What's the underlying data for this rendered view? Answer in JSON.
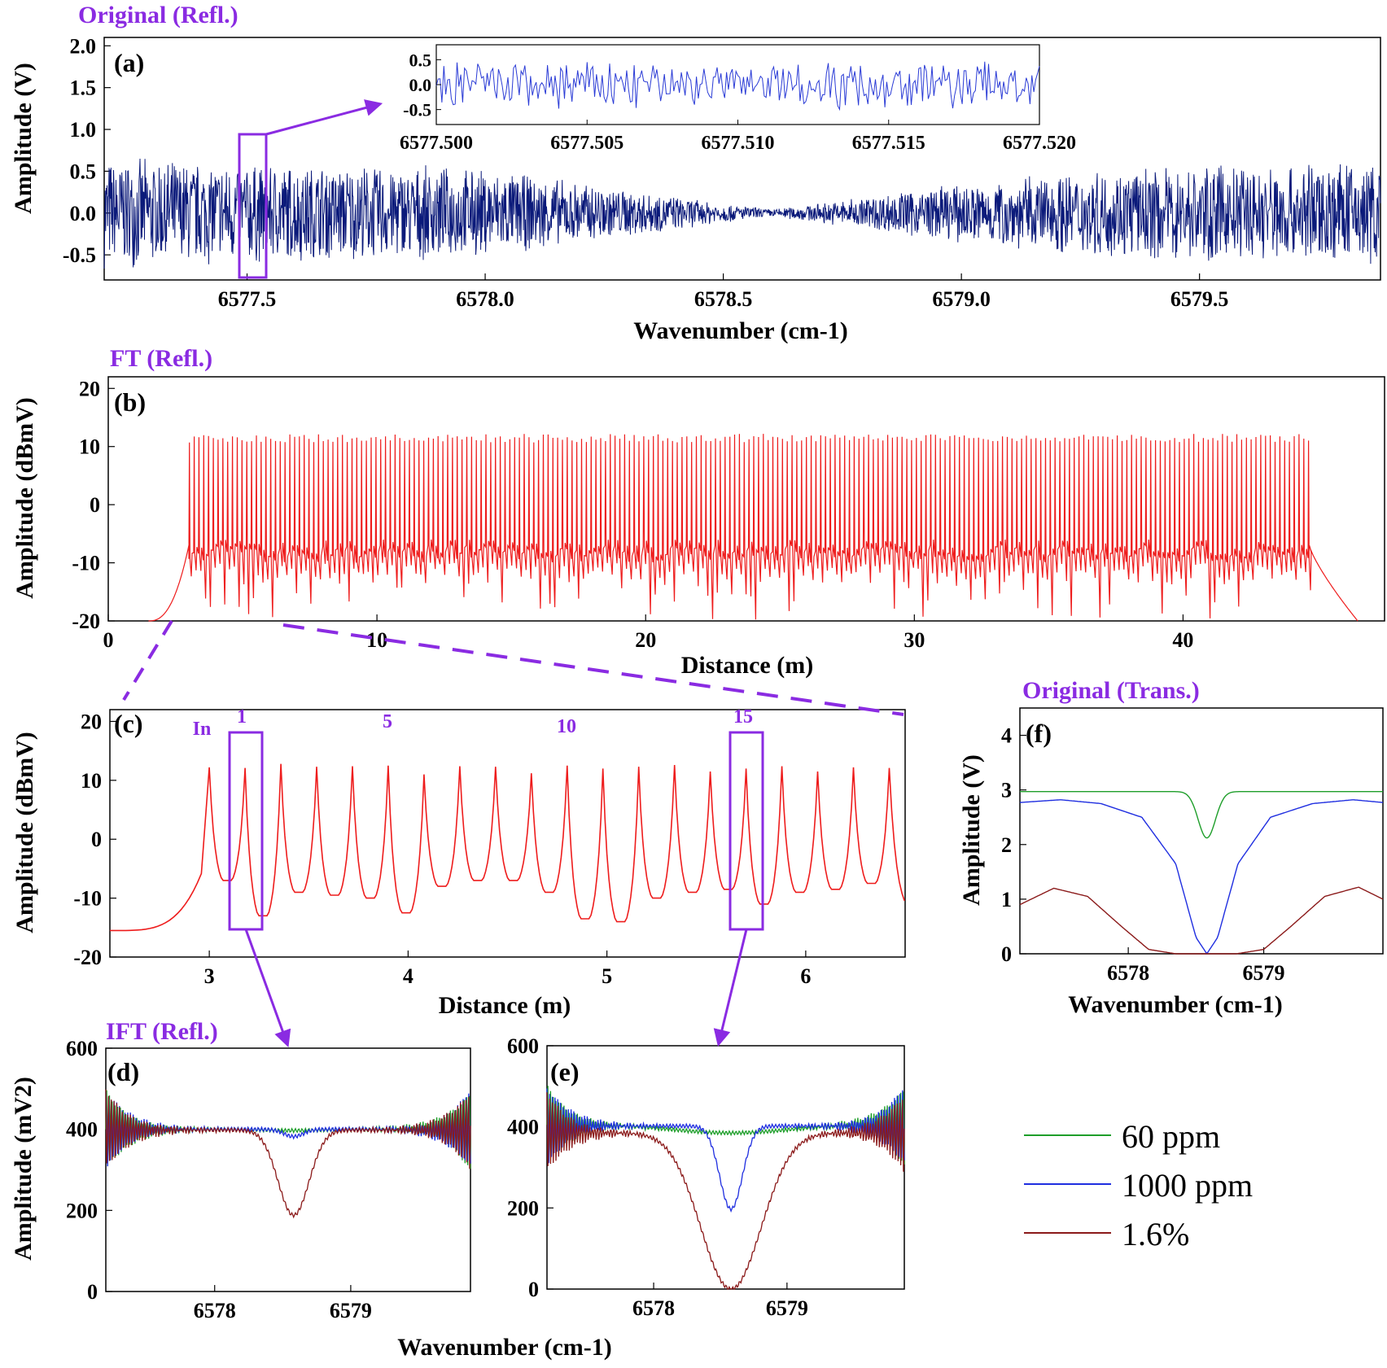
{
  "figure": {
    "colors": {
      "accent": "#8a2be2",
      "panel_a": "#0b1a7a",
      "spectrum": "#ee1c1c",
      "green": "#1e9e2a",
      "blue": "#1f2ee0",
      "darkred": "#8b1a1a"
    },
    "headers": {
      "a": "Original (Refl.)",
      "b": "FT (Refl.)",
      "f": "Original (Trans.)",
      "de": "IFT (Refl.)"
    },
    "legend": [
      "60 ppm",
      "1000 ppm",
      "1.6%"
    ]
  },
  "chart_data": [
    {
      "panel": "(a)",
      "type": "line",
      "xlabel": "Wavenumber (cm-1)",
      "ylabel": "Amplitude (V)",
      "xlim": [
        6577.2,
        6579.88
      ],
      "ylim": [
        -0.8,
        2.1
      ],
      "xticks": [
        "6577.5",
        "6578.0",
        "6578.5",
        "6579.0",
        "6579.5"
      ],
      "yticks": [
        "-0.5",
        "0.0",
        "0.5",
        "1.0",
        "1.5",
        "2.0"
      ],
      "series": [
        {
          "x": [
            6577.2,
            6577.6,
            6578.0,
            6578.3,
            6578.5,
            6578.6,
            6578.7,
            6578.9,
            6579.2,
            6579.5,
            6579.88
          ],
          "envelope": [
            0.68,
            0.62,
            0.55,
            0.3,
            0.12,
            0.05,
            0.12,
            0.3,
            0.5,
            0.6,
            0.65
          ]
        }
      ],
      "highlight_x": 6577.5,
      "inset": {
        "xlim": [
          6577.5,
          6577.52
        ],
        "ylim": [
          -0.8,
          0.8
        ],
        "xticks": [
          "6577.500",
          "6577.505",
          "6577.510",
          "6577.515",
          "6577.520"
        ],
        "yticks": [
          "0.5",
          "0.0",
          "-0.5"
        ],
        "amplitude": 0.55
      }
    },
    {
      "panel": "(b)",
      "type": "line",
      "xlabel": "Distance (m)",
      "ylabel": "Amplitude (dBmV)",
      "xlim": [
        0,
        47.5
      ],
      "ylim": [
        -20,
        22
      ],
      "xticks": [
        "0",
        "10",
        "20",
        "30",
        "40"
      ],
      "yticks": [
        "-20",
        "-10",
        "0",
        "10",
        "20"
      ],
      "peaks": {
        "start_m": 3.0,
        "end_m": 44.7,
        "spacing_m": 0.178,
        "peak_dbmv": 12.2,
        "baseline_dbmv": -7
      }
    },
    {
      "panel": "(c)",
      "type": "line",
      "xlabel": "Distance (m)",
      "ylabel": "Amplitude (dBmV)",
      "xlim": [
        2.5,
        6.5
      ],
      "ylim": [
        -20,
        22
      ],
      "xticks": [
        "3",
        "4",
        "5",
        "6"
      ],
      "yticks": [
        "-20",
        "-10",
        "0",
        "10",
        "20"
      ],
      "peaks": {
        "x": [
          3.0,
          3.18,
          3.36,
          3.54,
          3.72,
          3.9,
          4.08,
          4.26,
          4.44,
          4.62,
          4.8,
          4.98,
          5.16,
          5.34,
          5.52,
          5.7,
          5.88,
          6.06,
          6.24,
          6.42
        ],
        "y": [
          12.2,
          12.1,
          12.8,
          12.3,
          12.4,
          12.5,
          11.0,
          12.4,
          12.3,
          11.2,
          12.5,
          12.0,
          12.3,
          12.6,
          11.5,
          12.0,
          12.4,
          11.5,
          12.2,
          12.1
        ],
        "valley": [
          -7,
          -13,
          -9,
          -9.5,
          -10,
          -12.5,
          -8,
          -7,
          -7,
          -9,
          -13.5,
          -14,
          -10,
          -9,
          -8.5,
          -11,
          -9,
          -8.5,
          -7.5,
          -11
        ]
      },
      "annotations": [
        "In",
        "1",
        "5",
        "10",
        "15"
      ]
    },
    {
      "panel": "(d)",
      "type": "line",
      "xlabel": "Wavenumber (cm-1)",
      "ylabel": "Amplitude (mV2)",
      "xlim": [
        6577.2,
        6579.88
      ],
      "ylim": [
        0,
        600
      ],
      "xticks": [
        "6578",
        "6579"
      ],
      "yticks": [
        "0",
        "200",
        "400",
        "600"
      ],
      "center": 6578.58,
      "series": [
        {
          "label": "60 ppm",
          "baseline": 400,
          "depth": 3,
          "width": 0.3
        },
        {
          "label": "1000 ppm",
          "baseline": 400,
          "depth": 18,
          "width": 0.1
        },
        {
          "label": "1.6%",
          "baseline": 398,
          "depth": 210,
          "width": 0.16
        }
      ]
    },
    {
      "panel": "(e)",
      "type": "line",
      "xlabel": "Wavenumber (cm-1)",
      "ylabel": "",
      "xlim": [
        6577.2,
        6579.88
      ],
      "ylim": [
        0,
        600
      ],
      "xticks": [
        "6578",
        "6579"
      ],
      "yticks": [
        "0",
        "200",
        "400",
        "600"
      ],
      "center": 6578.58,
      "series": [
        {
          "label": "60 ppm",
          "baseline": 405,
          "depth": 20,
          "width": 0.6
        },
        {
          "label": "1000 ppm",
          "baseline": 402,
          "depth": 205,
          "width": 0.12
        },
        {
          "label": "1.6%",
          "baseline": 385,
          "depth": 385,
          "width": 0.32
        }
      ]
    },
    {
      "panel": "(f)",
      "type": "line",
      "xlabel": "Wavenumber (cm-1)",
      "ylabel": "Amplitude (V)",
      "xlim": [
        6577.2,
        6579.88
      ],
      "ylim": [
        0,
        4.5
      ],
      "xticks": [
        "6578",
        "6579"
      ],
      "yticks": [
        "0",
        "1",
        "2",
        "3",
        "4"
      ],
      "center": 6578.58,
      "series": [
        {
          "label": "60 ppm",
          "baseline": 2.97,
          "depth": 0.85,
          "width": 0.09
        },
        {
          "label": "1000 ppm",
          "x": [
            6577.2,
            6577.5,
            6577.8,
            6578.1,
            6578.35,
            6578.5,
            6578.58,
            6578.66,
            6578.81,
            6579.05,
            6579.36,
            6579.66,
            6579.88
          ],
          "y": [
            2.77,
            2.82,
            2.75,
            2.5,
            1.65,
            0.3,
            0.0,
            0.3,
            1.65,
            2.5,
            2.75,
            2.82,
            2.77
          ]
        },
        {
          "label": "1.6%",
          "x": [
            6577.2,
            6577.45,
            6577.7,
            6577.95,
            6578.15,
            6578.35,
            6578.58,
            6578.8,
            6579.0,
            6579.2,
            6579.45,
            6579.7,
            6579.88
          ],
          "y": [
            0.9,
            1.2,
            1.05,
            0.5,
            0.08,
            0.0,
            0.0,
            0.0,
            0.08,
            0.5,
            1.05,
            1.22,
            1.0
          ]
        }
      ]
    }
  ]
}
